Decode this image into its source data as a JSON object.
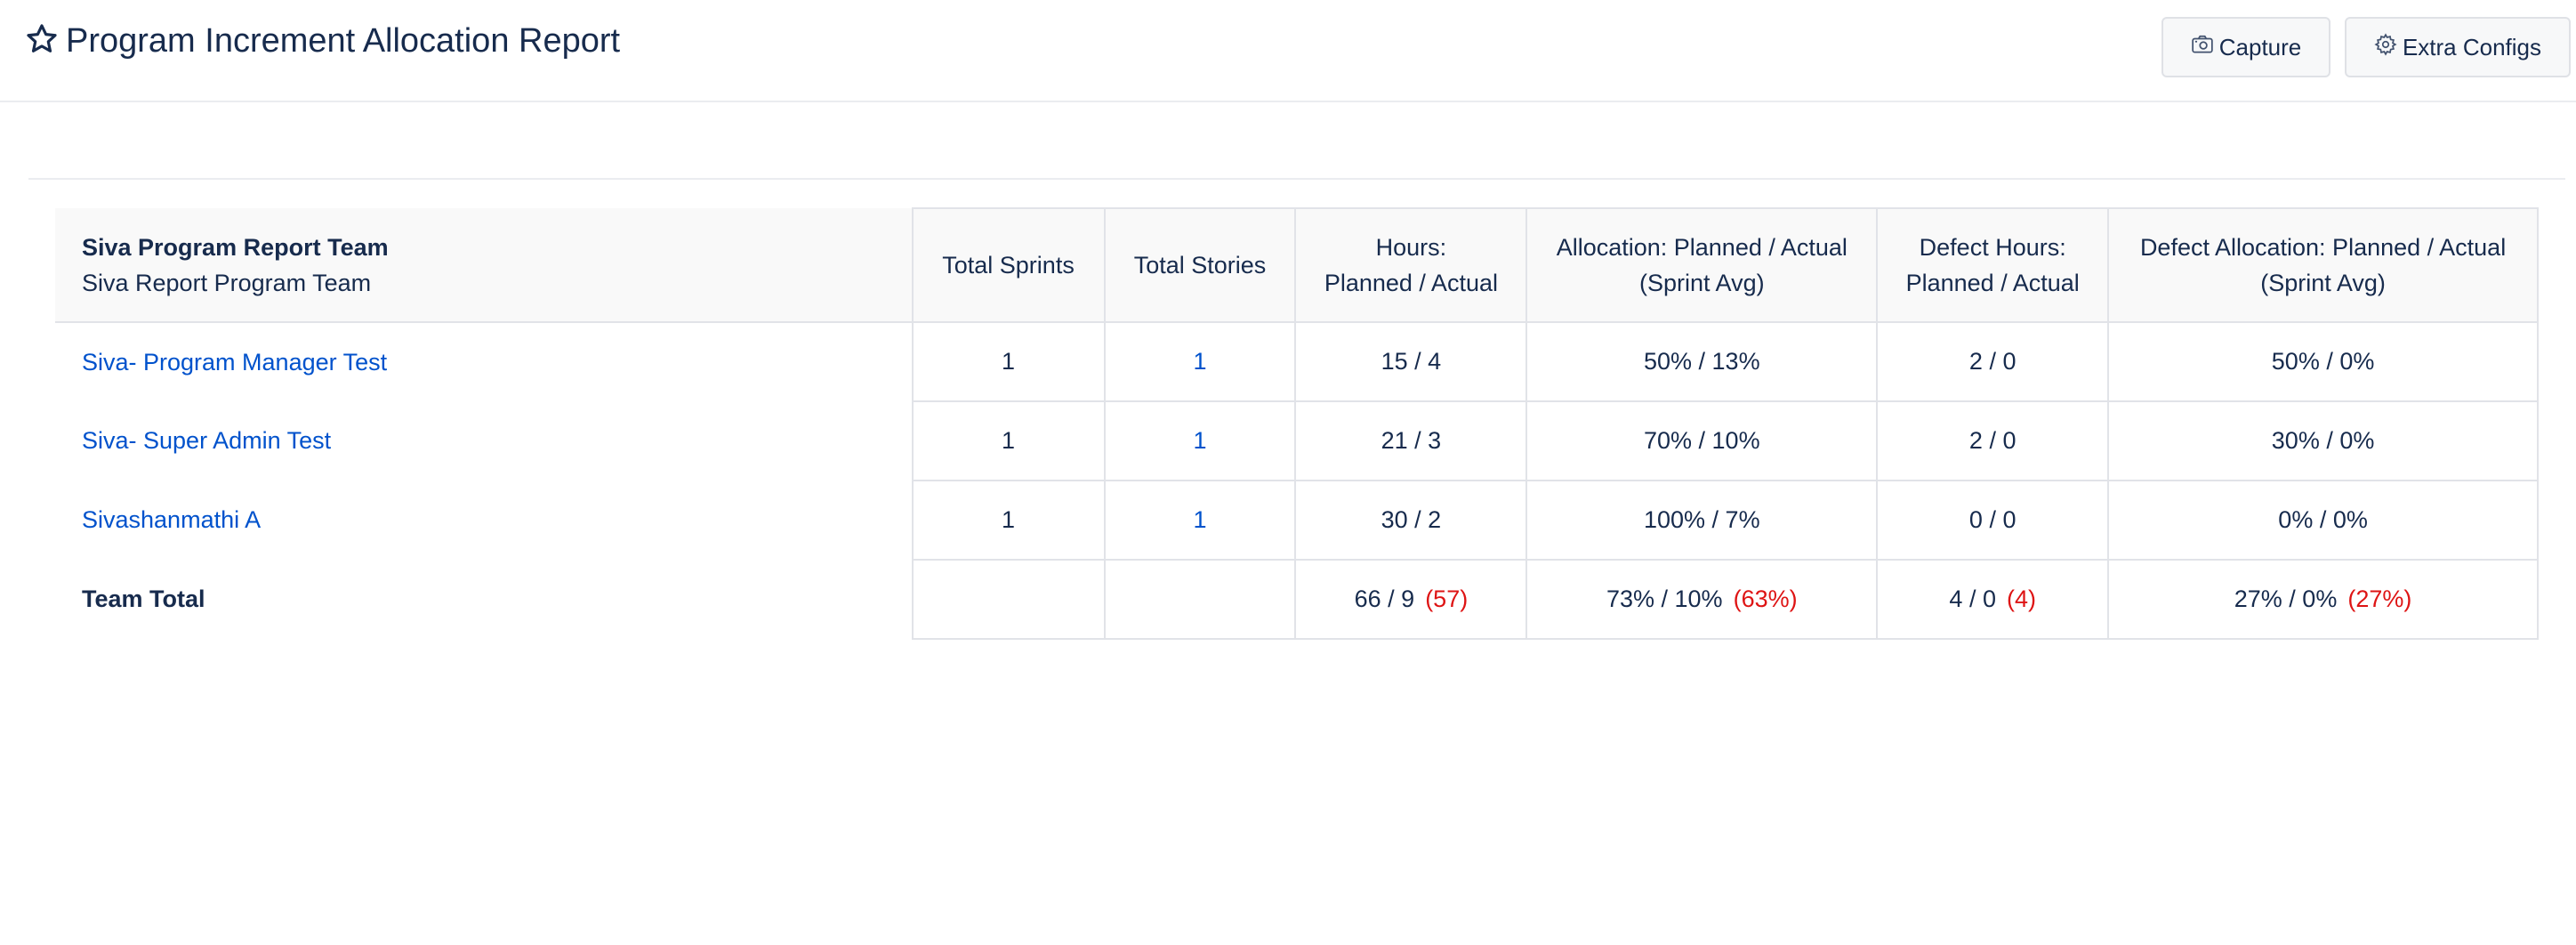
{
  "header": {
    "title": "Program Increment Allocation Report",
    "capture_label": "Capture",
    "configs_label": "Extra Configs"
  },
  "table": {
    "team_name": "Siva Program Report Team",
    "team_subtitle": "Siva Report Program Team",
    "columns": {
      "total_sprints": "Total Sprints",
      "total_stories": "Total Stories",
      "hours_l1": "Hours:",
      "hours_l2": "Planned / Actual",
      "alloc_l1": "Allocation: Planned / Actual",
      "alloc_l2": "(Sprint Avg)",
      "defect_hours_l1": "Defect Hours:",
      "defect_hours_l2": "Planned / Actual",
      "defect_alloc_l1": "Defect Allocation: Planned / Actual",
      "defect_alloc_l2": "(Sprint Avg)"
    },
    "rows": [
      {
        "name": "Siva- Program Manager Test",
        "sprints": "1",
        "stories": "1",
        "hours": "15 / 4",
        "alloc": "50% / 13%",
        "defect_hours": "2 / 0",
        "defect_alloc": "50% / 0%"
      },
      {
        "name": "Siva- Super Admin Test",
        "sprints": "1",
        "stories": "1",
        "hours": "21 / 3",
        "alloc": "70% / 10%",
        "defect_hours": "2 / 0",
        "defect_alloc": "30% / 0%"
      },
      {
        "name": "Sivashanmathi A",
        "sprints": "1",
        "stories": "1",
        "hours": "30 / 2",
        "alloc": "100% / 7%",
        "defect_hours": "0 / 0",
        "defect_alloc": "0% / 0%"
      }
    ],
    "total": {
      "label": "Team Total",
      "hours": "66 / 9",
      "hours_diff": "(57)",
      "alloc": "73% / 10%",
      "alloc_diff": "(63%)",
      "defect_hours": "4 / 0",
      "defect_hours_diff": "(4)",
      "defect_alloc": "27% / 0%",
      "defect_alloc_diff": "(27%)"
    }
  },
  "colors": {
    "link": "#0052cc",
    "difference": "#de1414",
    "text": "#172b4d"
  },
  "icons": {
    "title": "star-icon",
    "capture": "camera-icon",
    "configs": "gear-icon"
  }
}
